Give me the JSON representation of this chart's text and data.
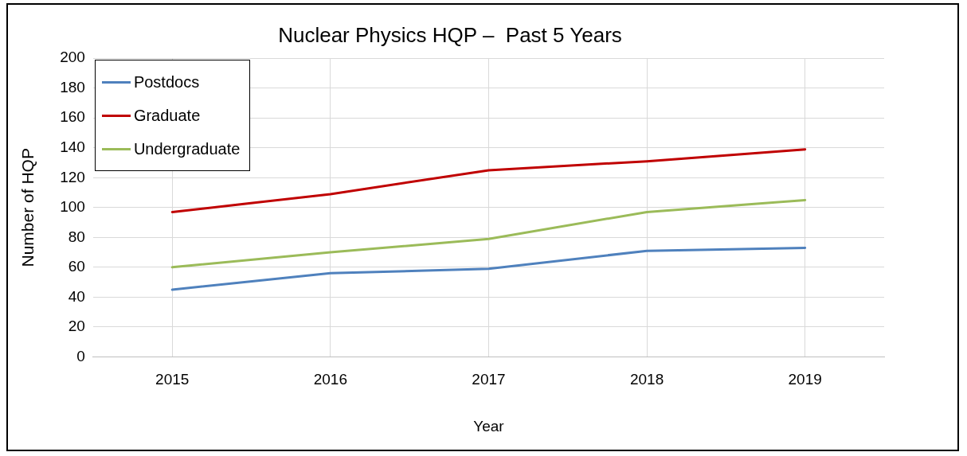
{
  "chart_data": {
    "type": "line",
    "title": "Nuclear Physics HQP –  Past 5 Years",
    "xlabel": "Year",
    "ylabel": "Number of HQP",
    "categories": [
      "2015",
      "2016",
      "2017",
      "2018",
      "2019"
    ],
    "series": [
      {
        "name": "Postdocs",
        "color": "#4f81bd",
        "values": [
          45,
          56,
          59,
          71,
          73
        ]
      },
      {
        "name": "Graduate",
        "color": "#c00000",
        "values": [
          97,
          109,
          125,
          131,
          139
        ]
      },
      {
        "name": "Undergraduate",
        "color": "#9bbb59",
        "values": [
          60,
          70,
          79,
          97,
          105
        ]
      }
    ],
    "ylim": [
      0,
      200
    ],
    "yticks": [
      0,
      20,
      40,
      60,
      80,
      100,
      120,
      140,
      160,
      180,
      200
    ],
    "grid": true,
    "legend": "top left",
    "marker": "none",
    "line_style": "solid"
  }
}
